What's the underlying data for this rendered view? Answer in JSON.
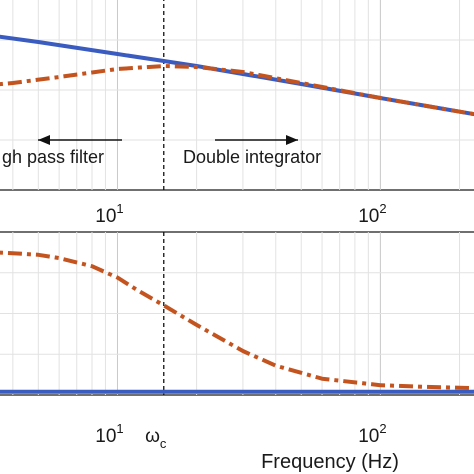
{
  "chart_data": [
    {
      "type": "line",
      "xscale": "log",
      "xlim": [
        3,
        250
      ],
      "ylim": [
        0,
        1
      ],
      "grid": true,
      "x_ticks": [
        {
          "base": "10",
          "exp": "1",
          "value": 10
        },
        {
          "base": "10",
          "exp": "2",
          "value": 100
        }
      ],
      "crossover_x": 15,
      "annotations": [
        {
          "text": "gh pass filter",
          "arrow": "left"
        },
        {
          "text": "Double integrator",
          "arrow": "right"
        }
      ],
      "series": [
        {
          "color": "#3a5bbf",
          "style": "solid",
          "x": [
            3,
            5,
            10,
            15,
            20,
            30,
            50,
            100,
            150,
            250
          ],
          "y": [
            0.78,
            0.74,
            0.68,
            0.645,
            0.62,
            0.58,
            0.53,
            0.46,
            0.42,
            0.37
          ]
        },
        {
          "color": "#c4541f",
          "style": "dashdot",
          "x": [
            3,
            4,
            6,
            10,
            15,
            20,
            30,
            50,
            100,
            150,
            250
          ],
          "y": [
            0.52,
            0.535,
            0.565,
            0.605,
            0.62,
            0.615,
            0.59,
            0.535,
            0.46,
            0.42,
            0.37
          ]
        }
      ]
    },
    {
      "type": "line",
      "xscale": "log",
      "xlim": [
        3,
        250
      ],
      "ylim": [
        0,
        1
      ],
      "grid": true,
      "xlabel": "Frequency  (Hz)",
      "x_ticks": [
        {
          "base": "10",
          "exp": "1",
          "value": 10
        },
        {
          "base": "ω",
          "exp": "c",
          "value": 15
        },
        {
          "base": "10",
          "exp": "2",
          "value": 100
        }
      ],
      "crossover_x": 15,
      "series": [
        {
          "color": "#3a5bbf",
          "style": "solid",
          "x": [
            3,
            250
          ],
          "y": [
            0.02,
            0.02
          ]
        },
        {
          "color": "#c4541f",
          "style": "dashdot",
          "x": [
            3,
            4,
            5,
            6,
            8,
            10,
            12,
            15,
            20,
            30,
            40,
            60,
            100,
            150,
            250
          ],
          "y": [
            0.88,
            0.87,
            0.86,
            0.84,
            0.79,
            0.72,
            0.64,
            0.55,
            0.43,
            0.27,
            0.18,
            0.1,
            0.06,
            0.05,
            0.04
          ]
        }
      ]
    }
  ]
}
